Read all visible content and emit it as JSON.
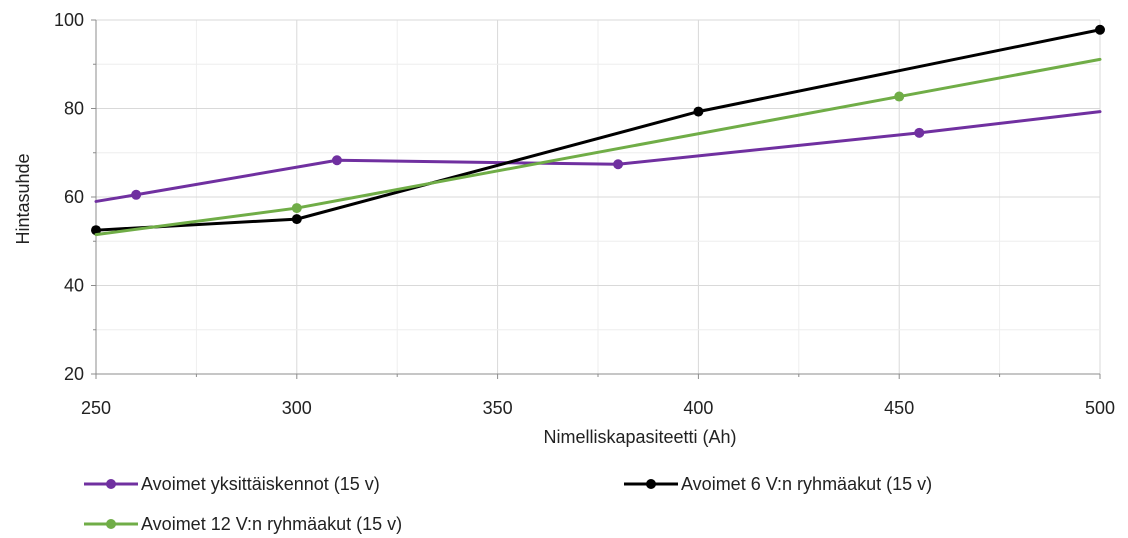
{
  "chart_data": {
    "type": "line",
    "title": "",
    "xlabel": "Nimelliskapasiteetti (Ah)",
    "ylabel": "Hintasuhde",
    "xlim": [
      250,
      500
    ],
    "ylim": [
      20,
      100
    ],
    "xticks": [
      250,
      300,
      350,
      400,
      450,
      500
    ],
    "yticks": [
      20,
      40,
      60,
      80,
      100
    ],
    "xtick_labels": [
      "250",
      "300",
      "350",
      "400",
      "450",
      "500"
    ],
    "ytick_labels": [
      "20",
      "40",
      "60",
      "80",
      "100"
    ],
    "grid": true,
    "legend_position": "bottom",
    "series": [
      {
        "name": "Avoimet yksittäiskennot (15 v)",
        "color": "#7030A0",
        "line_x": [
          250,
          260,
          310,
          380,
          455,
          500
        ],
        "line_y": [
          59,
          60.5,
          68.3,
          67.4,
          74.5,
          79.3
        ],
        "marker_x": [
          260,
          310,
          380,
          455
        ],
        "marker_y": [
          60.5,
          68.3,
          67.4,
          74.5
        ]
      },
      {
        "name": "Avoimet 6 V:n ryhmäakut (15 v)",
        "color": "#000000",
        "line_x": [
          250,
          300,
          400,
          500
        ],
        "line_y": [
          52.5,
          55,
          79.3,
          97.8
        ],
        "marker_x": [
          250,
          300,
          400,
          500
        ],
        "marker_y": [
          52.5,
          55,
          79.3,
          97.8
        ]
      },
      {
        "name": "Avoimet 12 V:n ryhmäakut (15 v)",
        "color": "#70AD47",
        "line_x": [
          250,
          300,
          450,
          500
        ],
        "line_y": [
          51.5,
          57.5,
          82.7,
          91.1
        ],
        "marker_x": [
          300,
          450
        ],
        "marker_y": [
          57.5,
          82.7
        ]
      }
    ]
  }
}
